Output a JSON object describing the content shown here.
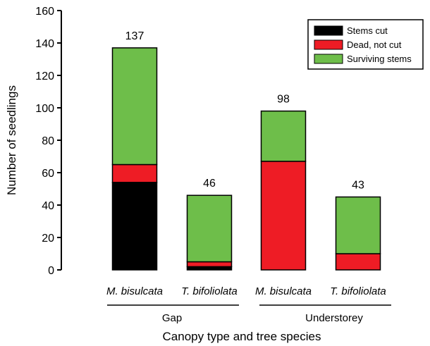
{
  "chart_data": {
    "type": "bar",
    "stacked": true,
    "ylabel": "Number of seedlings",
    "xlabel": "Canopy type and tree species",
    "ylim": [
      0,
      160
    ],
    "yticks": [
      0,
      20,
      40,
      60,
      80,
      100,
      120,
      140,
      160
    ],
    "categories": [
      "M. bisulcata",
      "T. bifoliolata",
      "M. bisulcata",
      "T. bifoliolata"
    ],
    "groups": [
      {
        "label": "Gap",
        "categories": [
          0,
          1
        ]
      },
      {
        "label": "Understorey",
        "categories": [
          2,
          3
        ]
      }
    ],
    "series": [
      {
        "name": "Stems cut",
        "color": "#000000",
        "values": [
          54,
          2,
          0,
          0
        ]
      },
      {
        "name": "Dead, not cut",
        "color": "#ee1c25",
        "values": [
          11,
          3,
          67,
          10
        ]
      },
      {
        "name": "Surviving stems",
        "color": "#6ebe4a",
        "values": [
          72,
          41,
          31,
          35
        ]
      }
    ],
    "totals": [
      "137",
      "46",
      "98",
      "43"
    ],
    "legend_position": "top-right"
  }
}
